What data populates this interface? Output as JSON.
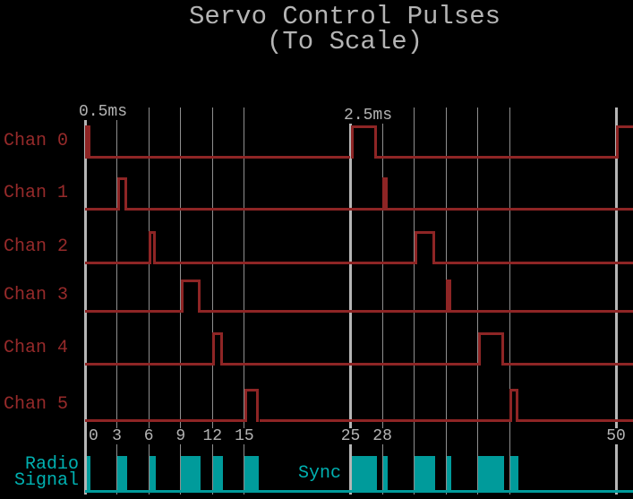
{
  "title": {
    "line1": "Servo Control Pulses",
    "line2": "(To Scale)"
  },
  "annotations": {
    "pulse_min_label": "0.5ms",
    "pulse_max_label": "2.5ms",
    "sync_label": "Sync"
  },
  "radio_label": {
    "line1": "Radio",
    "line2": "Signal"
  },
  "colors": {
    "background": "#000000",
    "waveform_red": "#8e2525",
    "label_red": "#962a2a",
    "signal_teal": "#009b9b",
    "teal_text": "#00b1b1",
    "grid_minor": "#8f8f8f",
    "grid_major": "#b5b5b5",
    "text_gray": "#b4b4b4"
  },
  "axis": {
    "unit": "ms",
    "range": [
      0,
      50
    ],
    "ticks": [
      {
        "ms": 0,
        "label": "0"
      },
      {
        "ms": 3,
        "label": "3"
      },
      {
        "ms": 6,
        "label": "6"
      },
      {
        "ms": 9,
        "label": "9"
      },
      {
        "ms": 12,
        "label": "12"
      },
      {
        "ms": 15,
        "label": "15"
      },
      {
        "ms": 25,
        "label": "25"
      },
      {
        "ms": 28,
        "label": "28"
      },
      {
        "ms": 50,
        "label": "50"
      }
    ],
    "minor_gridlines_ms": [
      3,
      6,
      9,
      12,
      15,
      28,
      31,
      34,
      37,
      40
    ],
    "major_gridlines_ms": [
      0,
      25,
      50
    ]
  },
  "chart_data": {
    "type": "line",
    "subtype": "digital-timing-diagram",
    "x_unit": "ms",
    "x_range": [
      0,
      50
    ],
    "frame_period_ms": 25,
    "channel_slot_spacing_ms": 3,
    "pulse_width_range_ms": [
      0.5,
      2.5
    ],
    "channels": [
      {
        "name": "Chan 0",
        "pulses": [
          {
            "start": 0,
            "width": 0.5
          },
          {
            "start": 25,
            "width": 2.5
          },
          {
            "start": 50,
            "width": 2.5
          }
        ]
      },
      {
        "name": "Chan 1",
        "pulses": [
          {
            "start": 3,
            "width": 1.0
          },
          {
            "start": 28,
            "width": 0.5
          }
        ]
      },
      {
        "name": "Chan 2",
        "pulses": [
          {
            "start": 6,
            "width": 0.7
          },
          {
            "start": 31,
            "width": 1.95
          }
        ]
      },
      {
        "name": "Chan 3",
        "pulses": [
          {
            "start": 9,
            "width": 1.85
          },
          {
            "start": 34,
            "width": 0.5
          }
        ]
      },
      {
        "name": "Chan 4",
        "pulses": [
          {
            "start": 12,
            "width": 0.95
          },
          {
            "start": 37,
            "width": 2.5
          }
        ]
      },
      {
        "name": "Chan 5",
        "pulses": [
          {
            "start": 15,
            "width": 1.4
          },
          {
            "start": 40,
            "width": 0.85
          }
        ]
      }
    ],
    "radio_signal": {
      "name": "Radio Signal",
      "pulses": [
        {
          "start": 0,
          "width": 0.5
        },
        {
          "start": 3,
          "width": 1.0
        },
        {
          "start": 6,
          "width": 0.7
        },
        {
          "start": 9,
          "width": 1.85
        },
        {
          "start": 12,
          "width": 0.95
        },
        {
          "start": 15,
          "width": 1.4
        },
        {
          "start": 25,
          "width": 2.5
        },
        {
          "start": 28,
          "width": 0.5
        },
        {
          "start": 31,
          "width": 1.95
        },
        {
          "start": 34,
          "width": 0.5
        },
        {
          "start": 37,
          "width": 2.5
        },
        {
          "start": 40,
          "width": 0.85
        }
      ]
    }
  }
}
